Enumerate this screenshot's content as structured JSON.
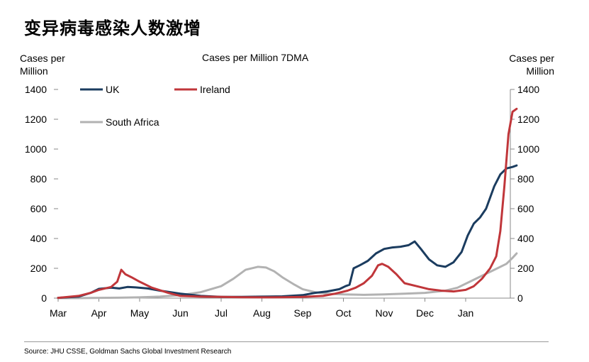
{
  "title": "变异病毒感染人数激增",
  "source": "Source: JHU CSSE, Goldman Sachs Global Investment Research",
  "chart_data": {
    "type": "line",
    "title": "Cases per Million 7DMA",
    "ylabel_left": "Cases per Million",
    "ylabel_right": "Cases per Million",
    "ylim": [
      0,
      1400
    ],
    "yticks": [
      0,
      200,
      400,
      600,
      800,
      1000,
      1200,
      1400
    ],
    "xlim": [
      0,
      11.5
    ],
    "xticks": [
      "Mar",
      "Apr",
      "May",
      "Jun",
      "Jul",
      "Aug",
      "Sep",
      "Oct",
      "Nov",
      "Dec",
      "Jan"
    ],
    "grid": false,
    "legend": "top-left",
    "series": [
      {
        "name": "UK",
        "color": "#1b3c5f",
        "x": [
          0,
          0.5,
          0.8,
          1.0,
          1.3,
          1.5,
          1.7,
          1.9,
          2.2,
          2.5,
          3.0,
          3.5,
          4.0,
          4.5,
          5.0,
          5.5,
          6.0,
          6.3,
          6.6,
          6.9,
          7.05,
          7.15,
          7.25,
          7.4,
          7.6,
          7.8,
          8.0,
          8.2,
          8.4,
          8.6,
          8.75,
          8.9,
          9.1,
          9.3,
          9.5,
          9.7,
          9.9,
          10.05,
          10.2,
          10.35,
          10.5,
          10.7,
          10.85,
          11.0,
          11.15,
          11.25
        ],
        "values": [
          2,
          10,
          35,
          62,
          70,
          65,
          75,
          72,
          65,
          50,
          30,
          15,
          8,
          8,
          10,
          12,
          20,
          35,
          45,
          60,
          80,
          90,
          200,
          220,
          250,
          300,
          330,
          340,
          345,
          355,
          380,
          330,
          260,
          220,
          210,
          240,
          310,
          420,
          500,
          540,
          600,
          750,
          830,
          870,
          880,
          890
        ]
      },
      {
        "name": "Ireland",
        "color": "#c0363a",
        "x": [
          0,
          0.5,
          0.8,
          1.0,
          1.3,
          1.45,
          1.55,
          1.65,
          1.8,
          2.0,
          2.3,
          2.7,
          3.0,
          3.5,
          4.0,
          4.5,
          5.0,
          5.5,
          6.0,
          6.5,
          6.8,
          7.1,
          7.3,
          7.5,
          7.7,
          7.85,
          7.95,
          8.1,
          8.3,
          8.5,
          8.8,
          9.1,
          9.4,
          9.7,
          10.0,
          10.2,
          10.4,
          10.6,
          10.75,
          10.85,
          10.95,
          11.05,
          11.15,
          11.25
        ],
        "values": [
          2,
          15,
          35,
          55,
          75,
          110,
          190,
          160,
          140,
          110,
          70,
          35,
          15,
          10,
          8,
          6,
          5,
          6,
          8,
          15,
          30,
          50,
          70,
          100,
          150,
          220,
          230,
          210,
          160,
          100,
          80,
          60,
          50,
          45,
          55,
          80,
          130,
          200,
          280,
          450,
          750,
          1100,
          1250,
          1270
        ]
      },
      {
        "name": "South Africa",
        "color": "#b2b2b2",
        "x": [
          0,
          0.5,
          1.0,
          1.5,
          2.0,
          2.5,
          3.0,
          3.5,
          4.0,
          4.3,
          4.6,
          4.9,
          5.1,
          5.3,
          5.5,
          5.8,
          6.0,
          6.3,
          6.6,
          7.0,
          7.5,
          8.0,
          8.5,
          9.0,
          9.5,
          9.8,
          10.1,
          10.4,
          10.7,
          11.0,
          11.15,
          11.25
        ],
        "values": [
          0,
          0,
          2,
          3,
          5,
          10,
          20,
          40,
          80,
          130,
          190,
          210,
          205,
          180,
          140,
          90,
          60,
          40,
          30,
          25,
          22,
          25,
          30,
          35,
          50,
          70,
          110,
          150,
          190,
          230,
          270,
          300
        ]
      }
    ]
  }
}
